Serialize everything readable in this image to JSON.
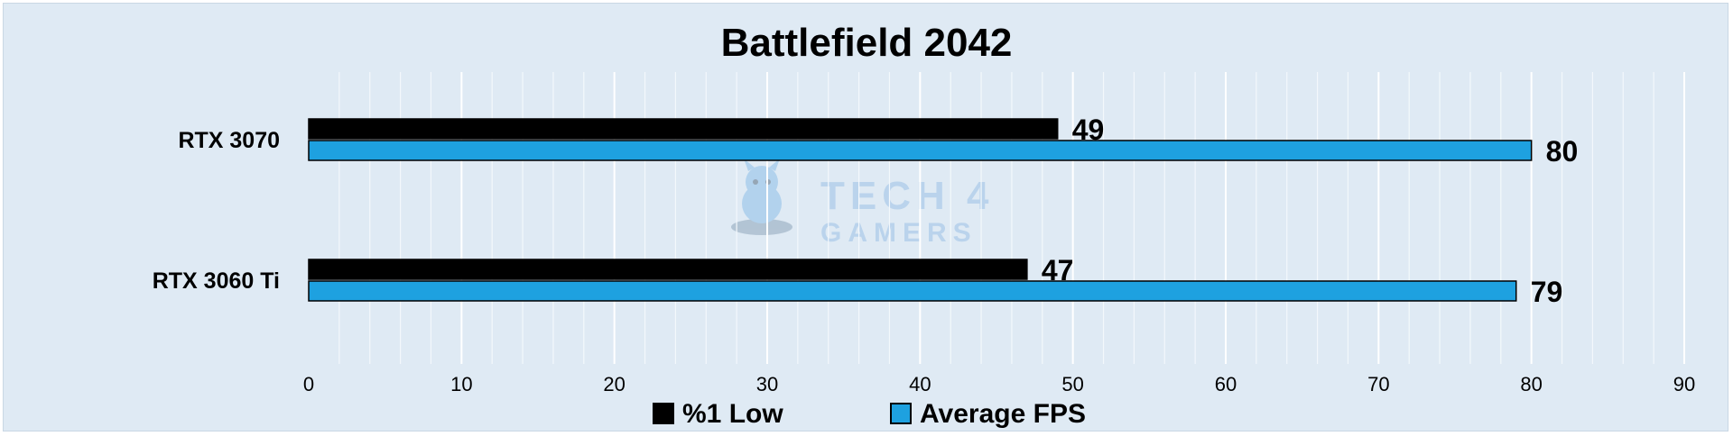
{
  "chart_data": {
    "type": "bar",
    "orientation": "horizontal",
    "title": "Battlefield 2042",
    "xlabel": "",
    "ylabel": "",
    "categories": [
      "RTX 3070",
      "RTX 3060 Ti"
    ],
    "series": [
      {
        "name": "%1 Low",
        "values": [
          49,
          47
        ],
        "color": "#000000"
      },
      {
        "name": "Average FPS",
        "values": [
          80,
          79
        ],
        "color": "#1ea1e0"
      }
    ],
    "xlim": [
      0,
      90
    ],
    "x_ticks": [
      "0",
      "10",
      "20",
      "30",
      "40",
      "50",
      "60",
      "70",
      "80",
      "90"
    ],
    "grid": true,
    "legend_position": "bottom"
  },
  "watermark": {
    "line1": "TECH 4",
    "line2": "GAMERS"
  }
}
